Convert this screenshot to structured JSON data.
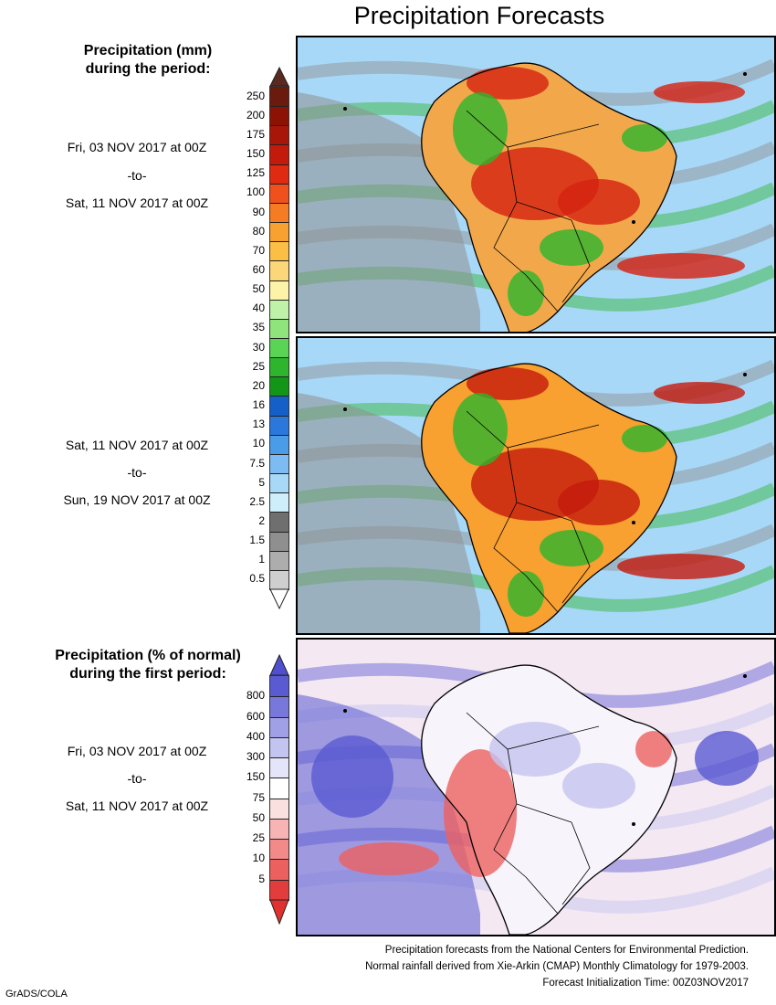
{
  "title": "Precipitation Forecasts",
  "precip_section": {
    "title_line1": "Precipitation (mm)",
    "title_line2": "during the period:"
  },
  "period1": {
    "start": "Fri, 03 NOV 2017 at 00Z",
    "sep": "-to-",
    "end": "Sat, 11 NOV 2017 at 00Z"
  },
  "period2": {
    "start": "Sat, 11 NOV 2017 at 00Z",
    "sep": "-to-",
    "end": "Sun, 19 NOV 2017 at 00Z"
  },
  "precip_scale": {
    "labels": [
      "250",
      "200",
      "175",
      "150",
      "125",
      "100",
      "90",
      "80",
      "70",
      "60",
      "50",
      "40",
      "35",
      "30",
      "25",
      "20",
      "16",
      "13",
      "10",
      "7.5",
      "5",
      "2.5",
      "2",
      "1.5",
      "1",
      "0.5"
    ],
    "colors": [
      "#6b1a0e",
      "#8c1206",
      "#a8160a",
      "#c41a0c",
      "#e02a12",
      "#f0501c",
      "#f57c23",
      "#f8a030",
      "#fbbf45",
      "#fcd77a",
      "#fdf3a8",
      "#bff2a8",
      "#8fe47c",
      "#5ad455",
      "#2cb52d",
      "#139618",
      "#1560c8",
      "#2a78dc",
      "#4a9be8",
      "#7cbcf2",
      "#a8d8f8",
      "#cdeefa",
      "#6f6f6f",
      "#8f8f8f",
      "#adadad",
      "#cfcfcf"
    ],
    "top_arrow_color": "#5a2a20",
    "bottom_arrow_color": "#ffffff"
  },
  "pct_section": {
    "title_line1": "Precipitation (% of normal)",
    "title_line2": "during the first period:"
  },
  "period3": {
    "start": "Fri, 03 NOV 2017 at 00Z",
    "sep": "-to-",
    "end": "Sat, 11 NOV 2017 at 00Z"
  },
  "pct_scale": {
    "labels": [
      "800",
      "600",
      "400",
      "300",
      "150",
      "75",
      "50",
      "25",
      "10",
      "5"
    ],
    "colors": [
      "#5a5ad2",
      "#7878dc",
      "#a0a0e6",
      "#c4c4f0",
      "#e4e4fa",
      "#ffffff",
      "#fbe0e0",
      "#f8b4b4",
      "#f28a8a",
      "#ec6060",
      "#e23c3c"
    ],
    "top_arrow_color": "#4f4fcf",
    "bottom_arrow_color": "#e03030"
  },
  "credits": {
    "line1": "Precipitation forecasts from the National Centers for Environmental Prediction.",
    "line2": "Normal rainfall derived from Xie-Arkin (CMAP) Monthly Climatology for 1979-2003.",
    "line3": "Forecast Initialization Time: 00Z03NOV2017"
  },
  "footer": {
    "left": "GrADS/COLA"
  },
  "maps": {
    "map1": {
      "ocean_color": "#a8d8f8",
      "land_color": "#f2a84a",
      "wet_color": "#2cb52d",
      "heavy_color": "#d42210",
      "dry_color": "#8f8f8f",
      "coast_color": "#000000"
    },
    "map2": {
      "ocean_color": "#a8d8f8",
      "land_color": "#f8a030",
      "wet_color": "#2cb52d",
      "heavy_color": "#c41a0c",
      "dry_color": "#8f8f8f",
      "coast_color": "#000000"
    },
    "map3": {
      "ocean_color": "#f4e8f2",
      "land_color": "#f8f4fb",
      "wet_color": "#c4c4f0",
      "heavy_color": "#ec6060",
      "dry_color": "#5a5ad2",
      "coast_color": "#000000"
    }
  }
}
